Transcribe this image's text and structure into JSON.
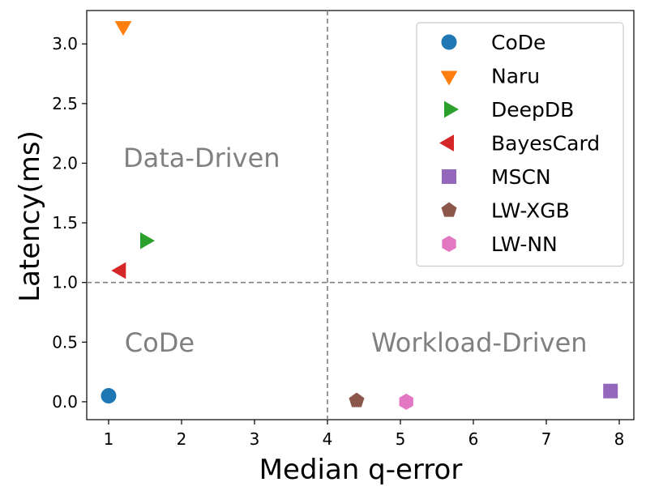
{
  "chart_data": {
    "type": "scatter",
    "title": "",
    "xlabel": "Median q-error",
    "ylabel": "Latency(ms)",
    "xlim": [
      0.7,
      8.2
    ],
    "ylim": [
      -0.15,
      3.28
    ],
    "xticks": [
      1,
      2,
      3,
      4,
      5,
      6,
      7,
      8
    ],
    "yticks": [
      0.0,
      0.5,
      1.0,
      1.5,
      2.0,
      2.5,
      3.0
    ],
    "xtick_labels": [
      "1",
      "2",
      "3",
      "4",
      "5",
      "6",
      "7",
      "8"
    ],
    "ytick_labels": [
      "0.0",
      "0.5",
      "1.0",
      "1.5",
      "2.0",
      "2.5",
      "3.0"
    ],
    "reference_lines": [
      {
        "orientation": "vertical",
        "value": 4,
        "style": "dashed",
        "color": "#808080"
      },
      {
        "orientation": "horizontal",
        "value": 1.0,
        "style": "dashed",
        "color": "#808080"
      }
    ],
    "region_labels": [
      {
        "text": "Data-Driven",
        "x": 1.2,
        "y": 1.97
      },
      {
        "text": "CoDe",
        "x": 1.22,
        "y": 0.42
      },
      {
        "text": "Workload-Driven",
        "x": 4.6,
        "y": 0.42
      }
    ],
    "series": [
      {
        "name": "CoDe",
        "x": 1.0,
        "y": 0.05,
        "marker": "circle",
        "color": "#1f77b4"
      },
      {
        "name": "Naru",
        "x": 1.2,
        "y": 3.15,
        "marker": "triangle-down",
        "color": "#ff7f0e"
      },
      {
        "name": "DeepDB",
        "x": 1.5,
        "y": 1.35,
        "marker": "triangle-right",
        "color": "#2ca02c"
      },
      {
        "name": "BayesCard",
        "x": 1.17,
        "y": 1.1,
        "marker": "triangle-left",
        "color": "#d62728"
      },
      {
        "name": "MSCN",
        "x": 7.88,
        "y": 0.09,
        "marker": "square",
        "color": "#9467bd"
      },
      {
        "name": "LW-XGB",
        "x": 4.4,
        "y": 0.01,
        "marker": "pentagon",
        "color": "#8c564b"
      },
      {
        "name": "LW-NN",
        "x": 5.08,
        "y": 0.0,
        "marker": "hexagon",
        "color": "#e377c2"
      }
    ],
    "legend": {
      "position": "top-right"
    },
    "grid": false
  }
}
